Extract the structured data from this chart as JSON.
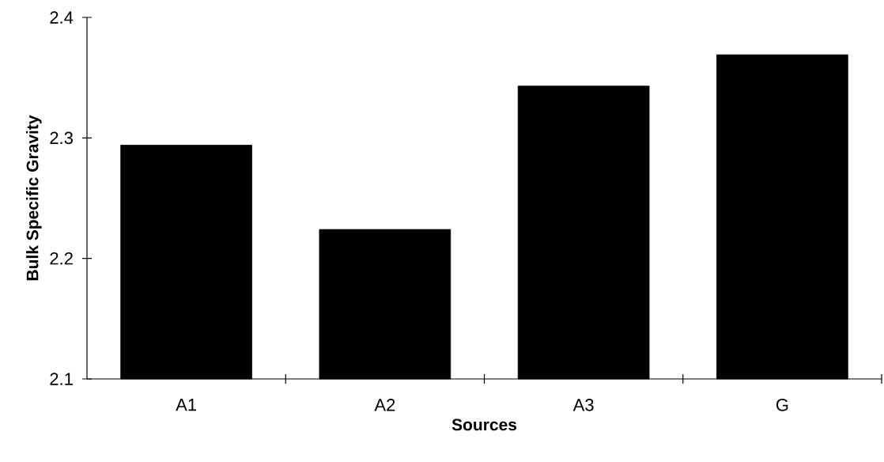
{
  "chart_data": {
    "type": "bar",
    "xlabel": "Sources",
    "ylabel": "Bulk Specific Gravity",
    "categories": [
      "A1",
      "A2",
      "A3",
      "G"
    ],
    "values": [
      2.294,
      2.224,
      2.343,
      2.369
    ],
    "color": "#000000",
    "ylim": [
      2.1,
      2.4
    ],
    "yticks": [
      2.1,
      2.2,
      2.3,
      2.4
    ],
    "grid": false
  }
}
